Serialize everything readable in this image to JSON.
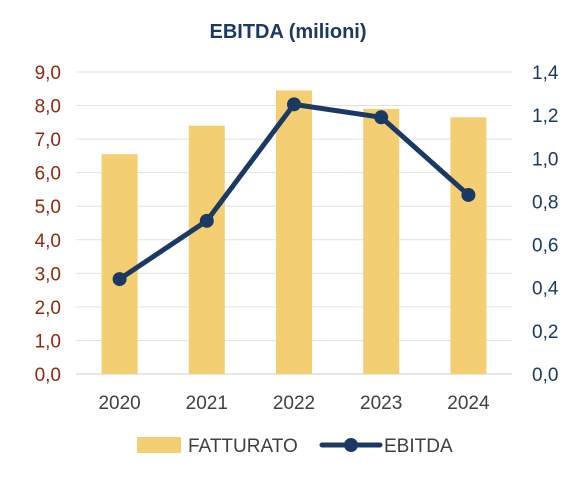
{
  "chart_data": {
    "type": "bar+line",
    "title": "EBITDA (milioni)",
    "categories": [
      "2020",
      "2021",
      "2022",
      "2023",
      "2024"
    ],
    "series": [
      {
        "name": "FATTURATO",
        "type": "bar",
        "axis": "left",
        "values": [
          6.55,
          7.4,
          8.45,
          7.9,
          7.65
        ],
        "color": "#F3CE72"
      },
      {
        "name": "EBITDA",
        "type": "line",
        "axis": "right",
        "values": [
          0.44,
          0.71,
          1.25,
          1.19,
          0.83
        ],
        "color": "#1B3A63"
      }
    ],
    "y_left": {
      "range": [
        0,
        9
      ],
      "ticks": [
        "0,0",
        "1,0",
        "2,0",
        "3,0",
        "4,0",
        "5,0",
        "6,0",
        "7,0",
        "8,0",
        "9,0"
      ],
      "color": "#8B2A0E"
    },
    "y_right": {
      "range": [
        0,
        1.4
      ],
      "ticks": [
        "0,0",
        "0,2",
        "0,4",
        "0,6",
        "0,8",
        "1,0",
        "1,2",
        "1,4"
      ],
      "color": "#1B3A63"
    },
    "title_color": "#1B3A63",
    "grid": true,
    "legend_position": "bottom"
  }
}
